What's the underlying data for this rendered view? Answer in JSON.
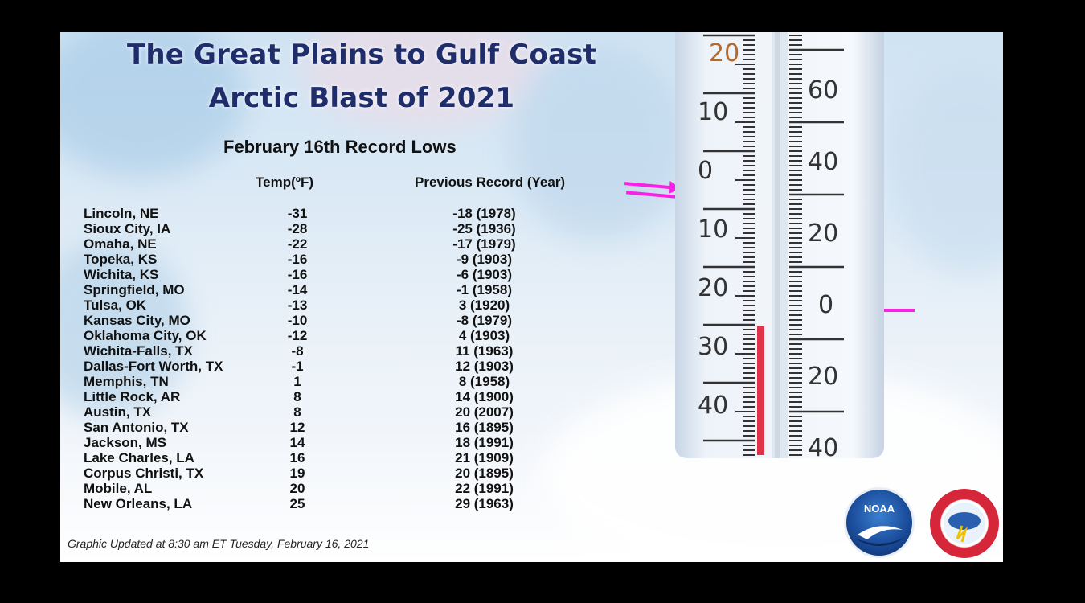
{
  "title": {
    "line1": "The Great Plains to Gulf Coast",
    "line2": "Arctic Blast of 2021"
  },
  "subtitle": "February 16th Record Lows",
  "columns": {
    "temp": "Temp(ºF)",
    "previous": "Previous Record (Year)"
  },
  "records": [
    {
      "city": "Lincoln, NE",
      "temp": "-31",
      "previous": "-18 (1978)"
    },
    {
      "city": "Sioux City, IA",
      "temp": "-28",
      "previous": "-25 (1936)"
    },
    {
      "city": "Omaha, NE",
      "temp": "-22",
      "previous": "-17 (1979)"
    },
    {
      "city": "Topeka, KS",
      "temp": "-16",
      "previous": "-9 (1903)"
    },
    {
      "city": "Wichita, KS",
      "temp": "-16",
      "previous": "-6 (1903)"
    },
    {
      "city": "Springfield, MO",
      "temp": "-14",
      "previous": "-1 (1958)"
    },
    {
      "city": "Tulsa, OK",
      "temp": "-13",
      "previous": "3 (1920)"
    },
    {
      "city": "Kansas City, MO",
      "temp": "-10",
      "previous": "-8 (1979)"
    },
    {
      "city": "Oklahoma City, OK",
      "temp": "-12",
      "previous": "4 (1903)"
    },
    {
      "city": "Wichita-Falls, TX",
      "temp": "-8",
      "previous": "11 (1963)"
    },
    {
      "city": "Dallas-Fort Worth, TX",
      "temp": "-1",
      "previous": "12 (1903)"
    },
    {
      "city": "Memphis, TN",
      "temp": "1",
      "previous": "8 (1958)"
    },
    {
      "city": "Little Rock, AR",
      "temp": "8",
      "previous": "14 (1900)"
    },
    {
      "city": "Austin, TX",
      "temp": "8",
      "previous": "20 (2007)"
    },
    {
      "city": "San Antonio, TX",
      "temp": "12",
      "previous": "16 (1895)"
    },
    {
      "city": "Jackson, MS",
      "temp": "14",
      "previous": "18 (1991)"
    },
    {
      "city": "Lake Charles, LA",
      "temp": "16",
      "previous": "21 (1909)"
    },
    {
      "city": "Corpus Christi, TX",
      "temp": "19",
      "previous": "20 (1895)"
    },
    {
      "city": "Mobile, AL",
      "temp": "20",
      "previous": "22 (1991)"
    },
    {
      "city": "New Orleans, LA",
      "temp": "25",
      "previous": "29 (1963)"
    }
  ],
  "footer": "Graphic Updated at 8:30 am ET Tuesday, February 16, 2021",
  "thermometer": {
    "left_scale": [
      "20",
      "10",
      "0",
      "10",
      "20",
      "30",
      "40"
    ],
    "right_scale": [
      "60",
      "40",
      "20",
      "0",
      "20",
      "40"
    ]
  },
  "logos": {
    "noaa": "NOAA",
    "nws": "NATIONAL WEATHER SERVICE"
  },
  "colors": {
    "title": "#1f2d6b",
    "arrow": "#ff1ee6",
    "mercury": "#e0334a"
  }
}
